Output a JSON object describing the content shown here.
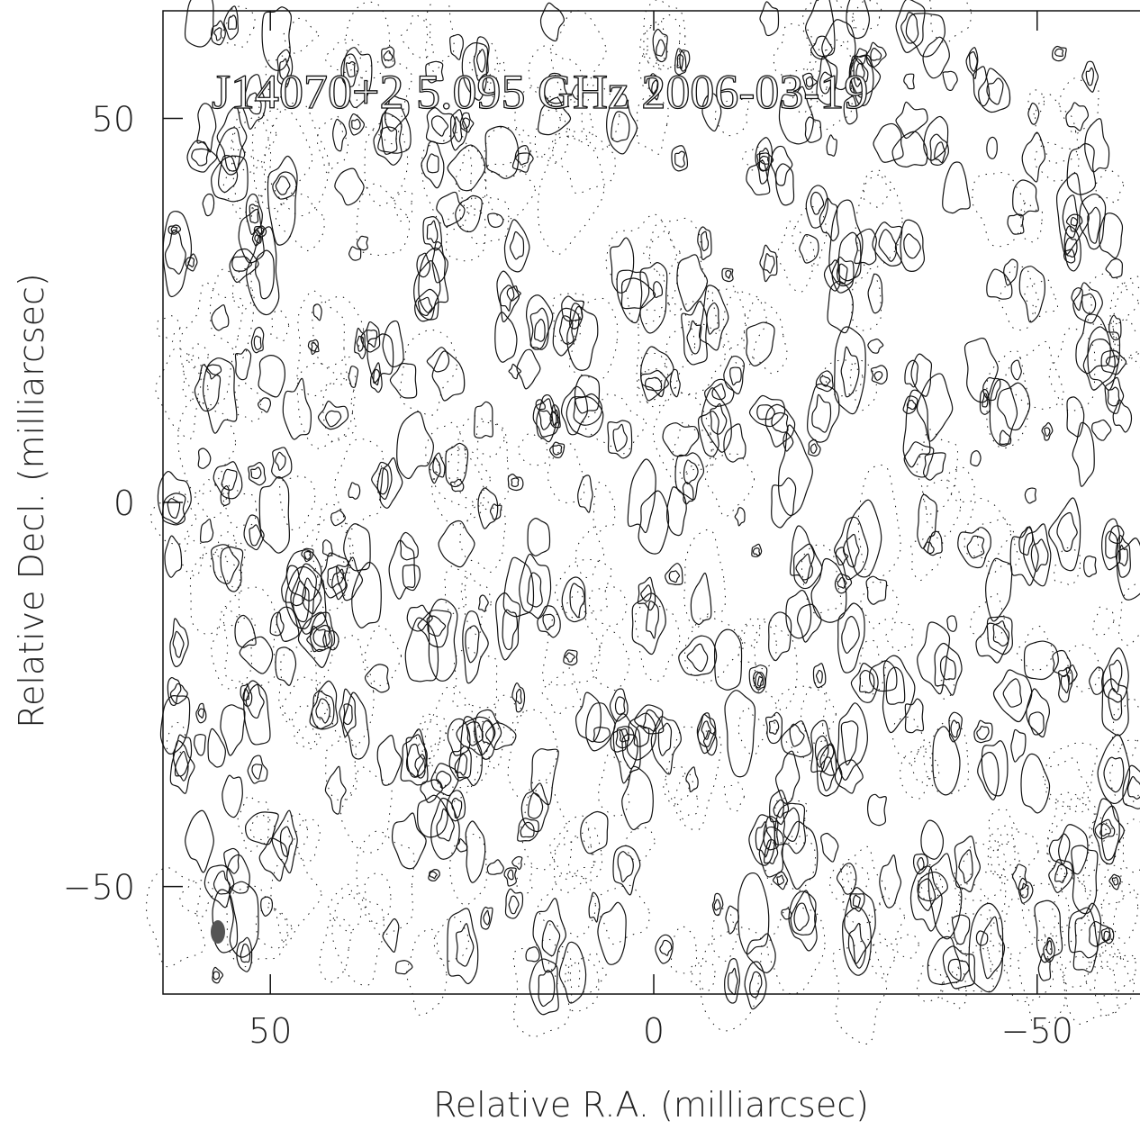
{
  "chart_data": {
    "type": "contour",
    "title": "J14070+2 5.095 GHz 2006-03-19",
    "x_label": "Relative R.A. (milliarcsec)",
    "y_label": "Relative Decl. (milliarcsec)",
    "xlim": [
      64,
      -64
    ],
    "ylim": [
      -64,
      64
    ],
    "xticks": [
      50,
      0,
      {
        "value": -50,
        "label": "−50"
      }
    ],
    "yticks": [
      50,
      0,
      {
        "value": -50,
        "label": "−50"
      }
    ]
  }
}
